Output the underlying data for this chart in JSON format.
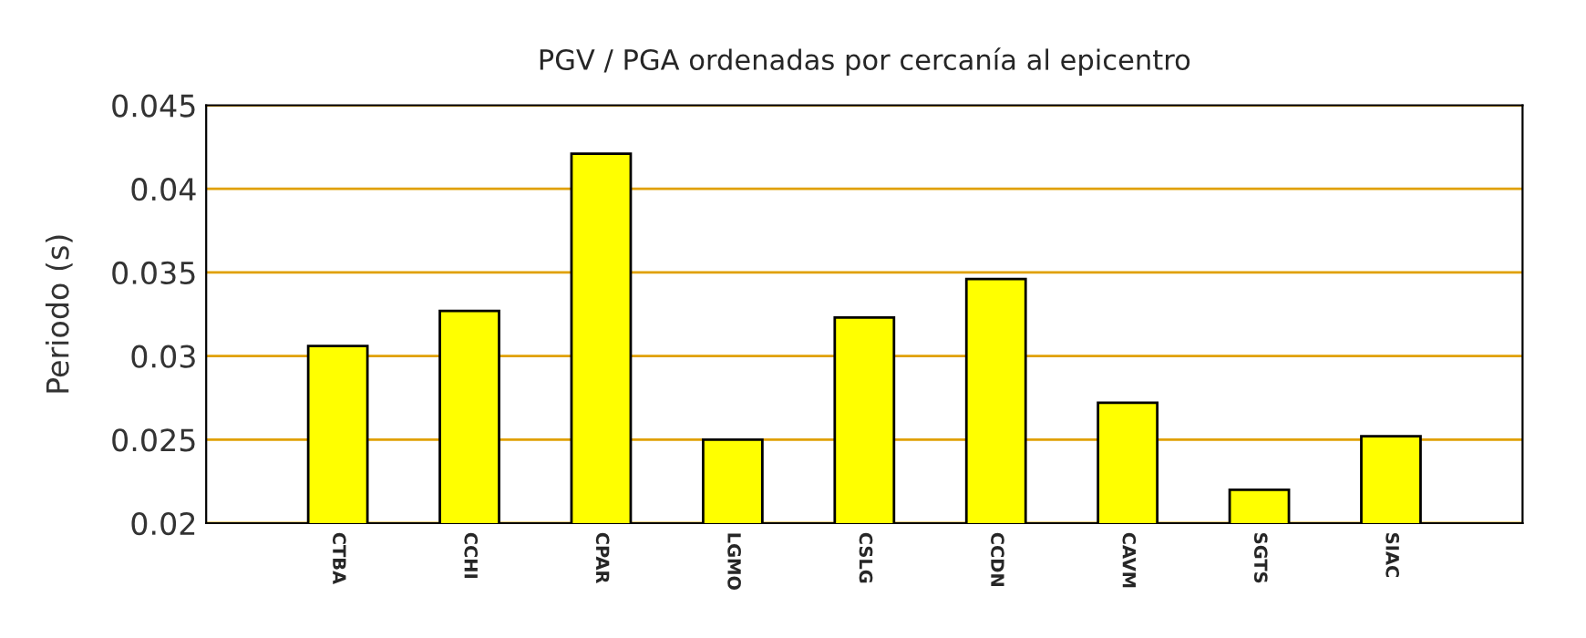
{
  "chart_data": {
    "type": "bar",
    "title": "PGV / PGA ordenadas por cercanía al epicentro",
    "ylabel": "Periodo (s)",
    "categories": [
      "CTBA",
      "CCHI",
      "CPAR",
      "LGMO",
      "CSLG",
      "CCDN",
      "CAVM",
      "SGTS",
      "SIAC"
    ],
    "values": [
      0.0306,
      0.0327,
      0.0421,
      0.025,
      0.0323,
      0.0346,
      0.0272,
      0.022,
      0.0252
    ],
    "color": "#ffff00",
    "ylim": [
      0.02,
      0.045
    ],
    "yticks": [
      0.02,
      0.025,
      0.03,
      0.035,
      0.04,
      0.045
    ],
    "grid": "y",
    "legend": false
  }
}
